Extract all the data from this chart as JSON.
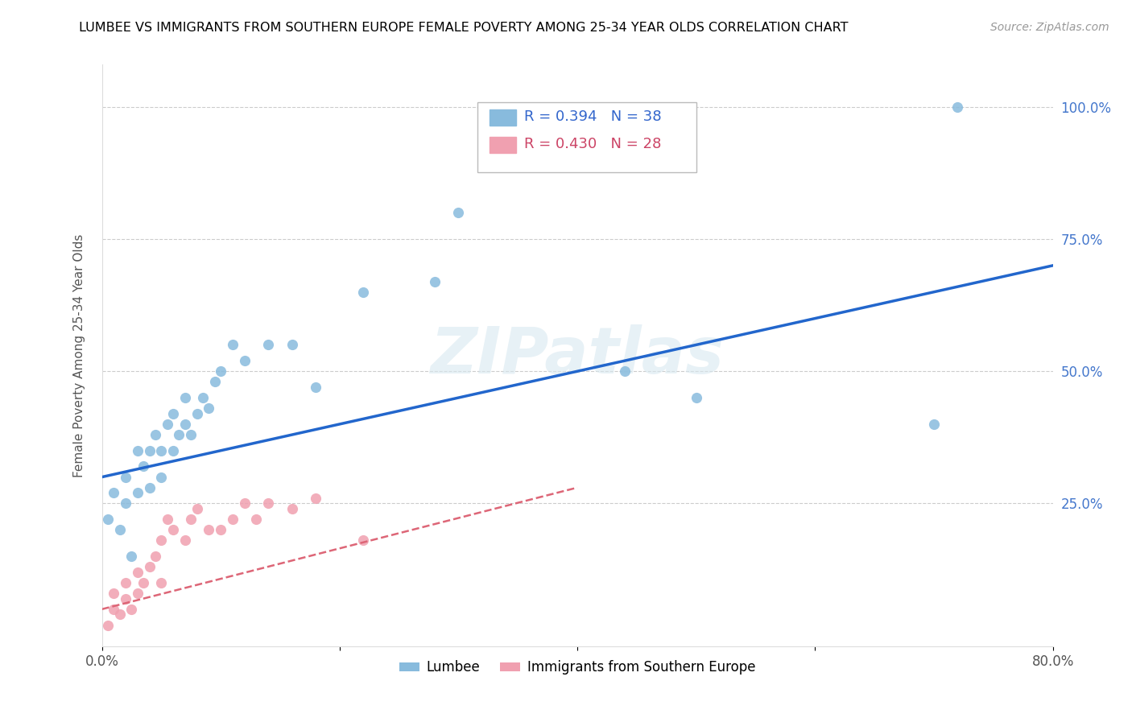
{
  "title": "LUMBEE VS IMMIGRANTS FROM SOUTHERN EUROPE FEMALE POVERTY AMONG 25-34 YEAR OLDS CORRELATION CHART",
  "source": "Source: ZipAtlas.com",
  "ylabel": "Female Poverty Among 25-34 Year Olds",
  "xlim": [
    0.0,
    0.8
  ],
  "ylim": [
    -0.02,
    1.08
  ],
  "lumbee_R": 0.394,
  "lumbee_N": 38,
  "immigrants_R": 0.43,
  "immigrants_N": 28,
  "lumbee_color": "#88bbdd",
  "immigrants_color": "#f0a0b0",
  "lumbee_line_color": "#2266cc",
  "immigrants_line_color": "#dd6677",
  "immigrants_line_dash": [
    6,
    4
  ],
  "lumbee_scatter_x": [
    0.005,
    0.01,
    0.015,
    0.02,
    0.02,
    0.025,
    0.03,
    0.03,
    0.035,
    0.04,
    0.04,
    0.045,
    0.05,
    0.05,
    0.055,
    0.06,
    0.06,
    0.065,
    0.07,
    0.07,
    0.075,
    0.08,
    0.085,
    0.09,
    0.095,
    0.1,
    0.11,
    0.12,
    0.14,
    0.16,
    0.18,
    0.22,
    0.28,
    0.3,
    0.44,
    0.5,
    0.7,
    0.72
  ],
  "lumbee_scatter_y": [
    0.22,
    0.27,
    0.2,
    0.25,
    0.3,
    0.15,
    0.27,
    0.35,
    0.32,
    0.35,
    0.28,
    0.38,
    0.3,
    0.35,
    0.4,
    0.35,
    0.42,
    0.38,
    0.4,
    0.45,
    0.38,
    0.42,
    0.45,
    0.43,
    0.48,
    0.5,
    0.55,
    0.52,
    0.55,
    0.55,
    0.47,
    0.65,
    0.67,
    0.8,
    0.5,
    0.45,
    0.4,
    1.0
  ],
  "immigrants_scatter_x": [
    0.005,
    0.01,
    0.01,
    0.015,
    0.02,
    0.02,
    0.025,
    0.03,
    0.03,
    0.035,
    0.04,
    0.045,
    0.05,
    0.05,
    0.055,
    0.06,
    0.07,
    0.075,
    0.08,
    0.09,
    0.1,
    0.11,
    0.12,
    0.13,
    0.14,
    0.16,
    0.18,
    0.22
  ],
  "immigrants_scatter_y": [
    0.02,
    0.05,
    0.08,
    0.04,
    0.1,
    0.07,
    0.05,
    0.08,
    0.12,
    0.1,
    0.13,
    0.15,
    0.1,
    0.18,
    0.22,
    0.2,
    0.18,
    0.22,
    0.24,
    0.2,
    0.2,
    0.22,
    0.25,
    0.22,
    0.25,
    0.24,
    0.26,
    0.18
  ],
  "lumbee_line_x0": 0.0,
  "lumbee_line_y0": 0.3,
  "lumbee_line_x1": 0.8,
  "lumbee_line_y1": 0.7,
  "immigrants_line_x0": 0.0,
  "immigrants_line_y0": 0.05,
  "immigrants_line_x1": 0.4,
  "immigrants_line_y1": 0.28
}
